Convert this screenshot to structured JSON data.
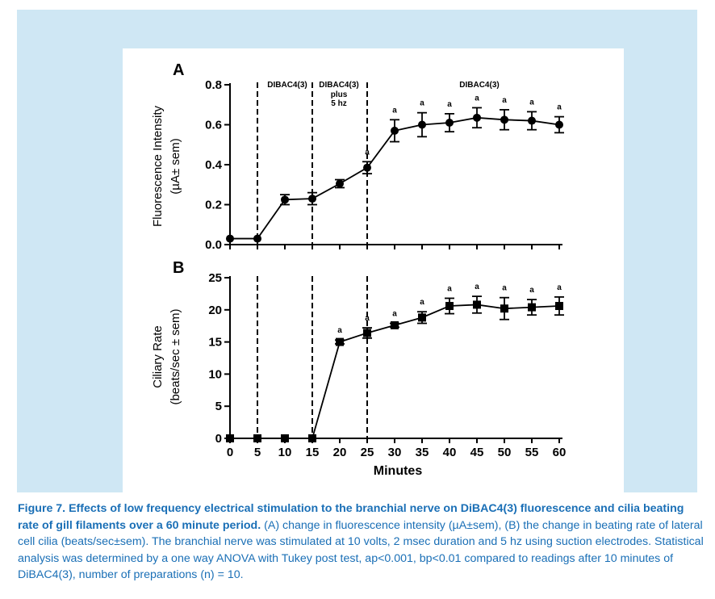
{
  "panels": {
    "A": {
      "letter": "A",
      "ylabel_line1": "Fluorescence Intensity",
      "ylabel_line2": "(µA± sem)",
      "annotations": {
        "dibac_1": "DIBAC4(3)",
        "dibac_2": "DIBAC4(3)",
        "plus": "plus",
        "hz": "5 hz",
        "dibac_3": "DIBAC4(3)"
      }
    },
    "B": {
      "letter": "B",
      "ylabel_line1": "Ciliary Rate",
      "ylabel_line2": "(beats/sec ± sem)"
    },
    "xlabel": "Minutes"
  },
  "chart_data": [
    {
      "type": "line",
      "panel": "A",
      "ylabel": "Fluorescence Intensity (µA± sem)",
      "xlabel": "Minutes",
      "xlim": [
        0,
        60
      ],
      "ylim": [
        0,
        0.8
      ],
      "y_ticks": [
        "0.0",
        "0.2",
        "0.4",
        "0.6",
        "0.8"
      ],
      "x_ticks": [
        "0",
        "5",
        "10",
        "15",
        "20",
        "25",
        "30",
        "35",
        "40",
        "45",
        "50",
        "55",
        "60"
      ],
      "marker": "circle",
      "stimulus_lines_at": [
        5,
        15,
        25
      ],
      "series": [
        {
          "x": [
            0,
            5,
            10,
            15,
            20,
            25,
            30,
            35,
            40,
            45,
            50,
            55,
            60
          ],
          "y": [
            0.03,
            0.03,
            0.225,
            0.23,
            0.305,
            0.385,
            0.57,
            0.6,
            0.61,
            0.635,
            0.625,
            0.62,
            0.6
          ],
          "sem": [
            0,
            0,
            0.025,
            0.03,
            0.02,
            0.03,
            0.055,
            0.06,
            0.045,
            0.05,
            0.05,
            0.045,
            0.04
          ],
          "labels": [
            "",
            "",
            "",
            "",
            "",
            "a",
            "a",
            "a",
            "a",
            "a",
            "a",
            "a",
            "a"
          ]
        }
      ]
    },
    {
      "type": "line",
      "panel": "B",
      "ylabel": "Ciliary Rate (beats/sec ± sem)",
      "xlabel": "Minutes",
      "xlim": [
        0,
        60
      ],
      "ylim": [
        0,
        25
      ],
      "y_ticks": [
        "0",
        "5",
        "10",
        "15",
        "20",
        "25"
      ],
      "x_ticks": [
        "0",
        "5",
        "10",
        "15",
        "20",
        "25",
        "30",
        "35",
        "40",
        "45",
        "50",
        "55",
        "60"
      ],
      "marker": "square",
      "stimulus_lines_at": [
        5,
        15,
        25
      ],
      "series": [
        {
          "x": [
            0,
            5,
            10,
            15,
            20,
            25,
            30,
            35,
            40,
            45,
            50,
            55,
            60
          ],
          "y": [
            0,
            0,
            0,
            0,
            15,
            16.4,
            17.6,
            18.8,
            20.6,
            20.8,
            20.2,
            20.4,
            20.6
          ],
          "sem": [
            0,
            0,
            0,
            0,
            0.3,
            0.8,
            0.3,
            0.9,
            1.2,
            1.3,
            1.7,
            1.2,
            1.4
          ],
          "labels": [
            "",
            "",
            "",
            "",
            "a",
            "a",
            "a",
            "a",
            "a",
            "a",
            "a",
            "a",
            "a"
          ]
        }
      ]
    }
  ],
  "caption": {
    "bold": "Figure 7. Effects of low frequency electrical stimulation to the branchial nerve on DiBAC4(3) fluorescence and cilia beating rate of gill filaments over a 60 minute period.",
    "normal": "(A) change in fluorescence intensity (µA±sem), (B) the change in beating rate of lateral cell cilia (beats/sec±sem). The branchial nerve was stimulated at 10 volts, 2 msec duration and 5 hz using suction electrodes. Statistical analysis was determined by a one way ANOVA with Tukey post test, ap<0.001, bp<0.01 compared to readings after 10 minutes of DiBAC4(3), number of preparations (n) = 10."
  }
}
